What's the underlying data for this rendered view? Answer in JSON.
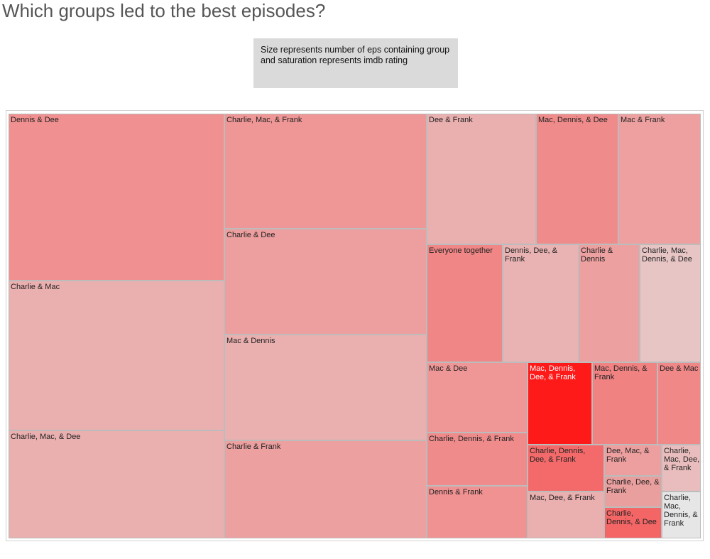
{
  "page": {
    "title": "Which groups led to the best episodes?",
    "note": "Size represents number of eps containing group and saturation represents imdb rating"
  },
  "chart_data": {
    "type": "treemap",
    "title": "Which groups led to the best episodes?",
    "note": "Size represents number of eps containing group and saturation represents imdb rating",
    "size_meaning": "number of eps containing group",
    "color_meaning": "imdb rating",
    "color_scale": [
      "#e6e6e6",
      "#ff1a1a"
    ],
    "nodes": [
      {
        "name": "Dennis & Dee",
        "size": 18,
        "color": "#f09090",
        "dark": false
      },
      {
        "name": "Charlie & Mac",
        "size": 16,
        "color": "#eaafaf",
        "dark": false
      },
      {
        "name": "Charlie, Mac, & Dee",
        "size": 12,
        "color": "#eaafaf",
        "dark": false
      },
      {
        "name": "Charlie, Mac, & Frank",
        "size": 12,
        "color": "#ef9696",
        "dark": false
      },
      {
        "name": "Charlie & Dee",
        "size": 11,
        "color": "#ed9f9f",
        "dark": false
      },
      {
        "name": "Mac & Dennis",
        "size": 11,
        "color": "#eaafaf",
        "dark": false
      },
      {
        "name": "Charlie & Frank",
        "size": 11,
        "color": "#eda0a0",
        "dark": false
      },
      {
        "name": "Dee & Frank",
        "size": 7,
        "color": "#eaafaf",
        "dark": false
      },
      {
        "name": "Mac, Dennis, & Dee",
        "size": 5.5,
        "color": "#f08b8b",
        "dark": false
      },
      {
        "name": "Mac & Frank",
        "size": 5.5,
        "color": "#eea0a0",
        "dark": false
      },
      {
        "name": "Everyone together",
        "size": 6,
        "color": "#f08686",
        "dark": false
      },
      {
        "name": "Dennis, Dee, & Frank",
        "size": 6,
        "color": "#e9b3b3",
        "dark": false
      },
      {
        "name": "Charlie & Dennis",
        "size": 4.5,
        "color": "#eda0a0",
        "dark": false
      },
      {
        "name": "Charlie, Mac, Dennis, & Dee",
        "size": 4.5,
        "color": "#e8c5c5",
        "dark": false
      },
      {
        "name": "Mac & Dee",
        "size": 4,
        "color": "#ef9797",
        "dark": false
      },
      {
        "name": "Charlie, Dennis, & Frank",
        "size": 3,
        "color": "#f08b8b",
        "dark": false
      },
      {
        "name": "Dennis & Frank",
        "size": 3,
        "color": "#f09292",
        "dark": false
      },
      {
        "name": "Mac, Dennis, Dee, & Frank",
        "size": 3,
        "color": "#ff1a1a",
        "dark": true
      },
      {
        "name": "Mac, Dennis, & Frank",
        "size": 3,
        "color": "#f08282",
        "dark": false
      },
      {
        "name": "Dee & Mac",
        "size": 2,
        "color": "#f08888",
        "dark": false
      },
      {
        "name": "Charlie, Dennis, Dee, & Frank",
        "size": 2,
        "color": "#f46a6a",
        "dark": false
      },
      {
        "name": "Mac, Dee, & Frank",
        "size": 2,
        "color": "#eaafaf",
        "dark": false
      },
      {
        "name": "Dee, Mac, & Frank",
        "size": 1,
        "color": "#ed9f9f",
        "dark": false
      },
      {
        "name": "Charlie, Dee, & Frank",
        "size": 1,
        "color": "#ea9f9f",
        "dark": false
      },
      {
        "name": "Charlie, Dennis, & Dee",
        "size": 1,
        "color": "#f46666",
        "dark": false
      },
      {
        "name": "Charlie, Mac, Dee, & Frank",
        "size": 1,
        "color": "#e9bdbd",
        "dark": false
      },
      {
        "name": "Charlie, Mac, Dennis, & Frank",
        "size": 1,
        "color": "#e6e6e6",
        "dark": false
      }
    ]
  }
}
